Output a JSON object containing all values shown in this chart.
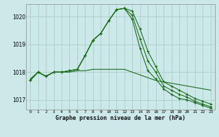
{
  "title": "Graphe pression niveau de la mer (hPa)",
  "background_color": "#cce8e8",
  "grid_color": "#aacccc",
  "line_color": "#1a6b1a",
  "x": [
    0,
    1,
    2,
    3,
    4,
    5,
    6,
    7,
    8,
    9,
    10,
    11,
    12,
    13,
    14,
    15,
    16,
    17,
    18,
    19,
    20,
    21,
    22,
    23
  ],
  "series": [
    [
      1017.75,
      1018.0,
      1017.85,
      1018.0,
      1018.0,
      1018.0,
      1018.05,
      1018.05,
      1018.1,
      1018.1,
      1018.1,
      1018.1,
      1018.1,
      1018.0,
      1017.9,
      1017.8,
      1017.7,
      1017.65,
      1017.6,
      1017.55,
      1017.5,
      1017.45,
      1017.4,
      1017.35
    ],
    [
      1017.7,
      1018.0,
      1017.85,
      1018.0,
      1018.0,
      1018.05,
      1018.1,
      1018.6,
      1019.15,
      1019.4,
      1019.85,
      1020.25,
      1020.3,
      1020.2,
      1019.55,
      1018.75,
      1018.2,
      1017.65,
      1017.5,
      1017.35,
      1017.2,
      1017.05,
      1016.95,
      1016.85
    ],
    [
      1017.7,
      1018.0,
      1017.85,
      1018.0,
      1018.0,
      1018.05,
      1018.1,
      1018.6,
      1019.15,
      1019.4,
      1019.85,
      1020.25,
      1020.3,
      1020.05,
      1019.2,
      1018.4,
      1018.0,
      1017.5,
      1017.35,
      1017.2,
      1017.1,
      1016.95,
      1016.85,
      1016.75
    ],
    [
      1017.7,
      1018.0,
      1017.85,
      1018.0,
      1018.0,
      1018.05,
      1018.1,
      1018.6,
      1019.15,
      1019.4,
      1019.85,
      1020.25,
      1020.3,
      1019.9,
      1018.85,
      1018.05,
      1017.75,
      1017.4,
      1017.2,
      1017.05,
      1017.0,
      1016.9,
      1016.8,
      1016.7
    ]
  ],
  "marker_series": [
    1,
    2,
    3
  ],
  "ylim": [
    1016.65,
    1020.45
  ],
  "yticks": [
    1017,
    1018,
    1019,
    1020
  ],
  "xlim": [
    -0.5,
    23.5
  ],
  "xticks": [
    0,
    1,
    2,
    3,
    4,
    5,
    6,
    7,
    8,
    9,
    10,
    11,
    12,
    13,
    14,
    15,
    16,
    17,
    18,
    19,
    20,
    21,
    22,
    23
  ],
  "figsize": [
    3.2,
    2.0
  ],
  "dpi": 100
}
